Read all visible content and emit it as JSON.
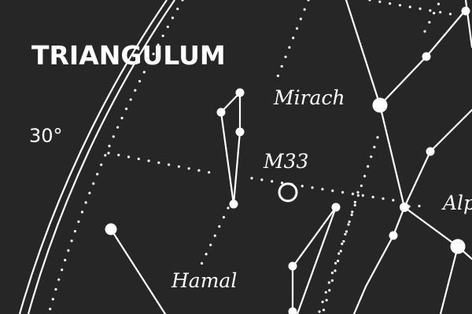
{
  "labels": {
    "constellation": "TRIANGULUM",
    "declination": "30°",
    "mirach": "Mirach",
    "m33": "M33",
    "hamal": "Hamal",
    "alpheratz_partial": "Alp"
  },
  "colors": {
    "background": "#262626",
    "foreground": "#ffffff"
  }
}
